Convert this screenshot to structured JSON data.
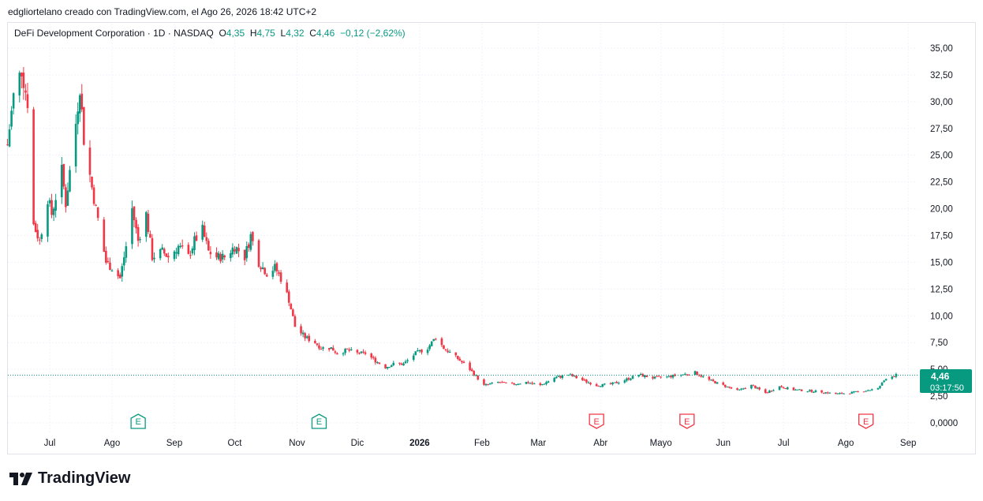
{
  "credit": "edgliortelano creado con TradingView.com, el Ago 26, 2026 18:42 UTC+2",
  "legend": {
    "symbol": "DeFi Development Corporation · 1D · NASDAQ",
    "o_label": "O",
    "o_value": "4,35",
    "h_label": "H",
    "h_value": "4,75",
    "l_label": "L",
    "l_value": "4,32",
    "c_label": "C",
    "c_value": "4,46",
    "change": "−0,12 (−2,62%)"
  },
  "price_tag": {
    "price": "4,46",
    "countdown": "03:17:50"
  },
  "brand": "TradingView",
  "colors": {
    "up": "#089981",
    "down": "#f23645",
    "grid": "#f0f3fa",
    "tag": "#089981"
  },
  "chart_data": {
    "type": "candlestick",
    "y_ticks": [
      "35,00",
      "32,50",
      "30,00",
      "27,50",
      "25,00",
      "22,50",
      "20,00",
      "17,50",
      "15,00",
      "12,50",
      "10,00",
      "7,50",
      "5,00",
      "2,50",
      "0,0000"
    ],
    "ylim": [
      0,
      35
    ],
    "x_ticks": [
      {
        "label": "Jul",
        "date": "2025-07-01"
      },
      {
        "label": "Ago",
        "date": "2025-08-01"
      },
      {
        "label": "Sep",
        "date": "2025-09-01"
      },
      {
        "label": "Oct",
        "date": "2025-10-01"
      },
      {
        "label": "Nov",
        "date": "2025-11-01"
      },
      {
        "label": "Dic",
        "date": "2025-12-01"
      },
      {
        "label": "2026",
        "date": "2026-01-01",
        "bold": true
      },
      {
        "label": "Feb",
        "date": "2026-02-01"
      },
      {
        "label": "Mar",
        "date": "2026-03-01"
      },
      {
        "label": "Abr",
        "date": "2026-04-01"
      },
      {
        "label": "Mayo",
        "date": "2026-05-01"
      },
      {
        "label": "Jun",
        "date": "2026-06-01"
      },
      {
        "label": "Jul",
        "date": "2026-07-01"
      },
      {
        "label": "Ago",
        "date": "2026-08-01"
      },
      {
        "label": "Sep",
        "date": "2026-09-01"
      }
    ],
    "earnings": [
      {
        "date": "2025-08-14",
        "label": "E",
        "type": "up"
      },
      {
        "date": "2025-11-12",
        "label": "E",
        "type": "up"
      },
      {
        "date": "2026-03-30",
        "label": "E",
        "type": "down"
      },
      {
        "date": "2026-05-14",
        "label": "E",
        "type": "down"
      },
      {
        "date": "2026-08-11",
        "label": "E",
        "type": "down"
      }
    ],
    "price_path": [
      [
        "2025-06-10",
        26.0
      ],
      [
        "2025-06-13",
        30.5
      ],
      [
        "2025-06-17",
        33.0
      ],
      [
        "2025-06-20",
        30.0
      ],
      [
        "2025-06-23",
        18.5
      ],
      [
        "2025-06-26",
        17.0
      ],
      [
        "2025-06-30",
        21.0
      ],
      [
        "2025-07-02",
        19.5
      ],
      [
        "2025-07-07",
        23.5
      ],
      [
        "2025-07-09",
        20.5
      ],
      [
        "2025-07-14",
        28.0
      ],
      [
        "2025-07-16",
        31.5
      ],
      [
        "2025-07-18",
        26.5
      ],
      [
        "2025-07-22",
        22.0
      ],
      [
        "2025-07-25",
        19.0
      ],
      [
        "2025-07-29",
        15.0
      ],
      [
        "2025-08-01",
        14.5
      ],
      [
        "2025-08-05",
        13.5
      ],
      [
        "2025-08-08",
        16.5
      ],
      [
        "2025-08-11",
        20.0
      ],
      [
        "2025-08-14",
        17.0
      ],
      [
        "2025-08-18",
        19.5
      ],
      [
        "2025-08-21",
        15.5
      ],
      [
        "2025-08-26",
        16.0
      ],
      [
        "2025-08-29",
        15.5
      ],
      [
        "2025-09-03",
        16.5
      ],
      [
        "2025-09-08",
        15.5
      ],
      [
        "2025-09-11",
        17.0
      ],
      [
        "2025-09-15",
        18.0
      ],
      [
        "2025-09-18",
        16.0
      ],
      [
        "2025-09-22",
        15.5
      ],
      [
        "2025-09-26",
        15.5
      ],
      [
        "2025-10-01",
        16.5
      ],
      [
        "2025-10-06",
        15.5
      ],
      [
        "2025-10-09",
        17.5
      ],
      [
        "2025-10-13",
        15.0
      ],
      [
        "2025-10-17",
        14.0
      ],
      [
        "2025-10-21",
        14.5
      ],
      [
        "2025-10-24",
        13.5
      ],
      [
        "2025-10-28",
        11.5
      ],
      [
        "2025-10-31",
        9.0
      ],
      [
        "2025-11-05",
        8.0
      ],
      [
        "2025-11-10",
        7.5
      ],
      [
        "2025-11-13",
        7.0
      ],
      [
        "2025-11-18",
        7.0
      ],
      [
        "2025-11-21",
        6.5
      ],
      [
        "2025-11-26",
        6.8
      ],
      [
        "2025-12-01",
        6.5
      ],
      [
        "2025-12-05",
        6.5
      ],
      [
        "2025-12-10",
        5.8
      ],
      [
        "2025-12-15",
        5.2
      ],
      [
        "2025-12-19",
        5.5
      ],
      [
        "2025-12-24",
        5.5
      ],
      [
        "2025-12-30",
        6.5
      ],
      [
        "2026-01-05",
        7.0
      ],
      [
        "2026-01-09",
        8.0
      ],
      [
        "2026-01-13",
        7.0
      ],
      [
        "2026-01-20",
        6.0
      ],
      [
        "2026-01-26",
        5.0
      ],
      [
        "2026-02-02",
        3.5
      ],
      [
        "2026-02-09",
        3.8
      ],
      [
        "2026-02-16",
        3.6
      ],
      [
        "2026-02-23",
        3.8
      ],
      [
        "2026-03-02",
        3.5
      ],
      [
        "2026-03-09",
        4.2
      ],
      [
        "2026-03-16",
        4.5
      ],
      [
        "2026-03-23",
        4.0
      ],
      [
        "2026-03-30",
        3.5
      ],
      [
        "2026-04-06",
        3.6
      ],
      [
        "2026-04-13",
        4.0
      ],
      [
        "2026-04-20",
        4.5
      ],
      [
        "2026-04-27",
        4.2
      ],
      [
        "2026-05-04",
        4.3
      ],
      [
        "2026-05-11",
        4.5
      ],
      [
        "2026-05-18",
        4.7
      ],
      [
        "2026-05-25",
        4.0
      ],
      [
        "2026-06-01",
        3.5
      ],
      [
        "2026-06-08",
        3.0
      ],
      [
        "2026-06-15",
        3.5
      ],
      [
        "2026-06-22",
        2.8
      ],
      [
        "2026-06-29",
        3.4
      ],
      [
        "2026-07-06",
        3.1
      ],
      [
        "2026-07-13",
        3.0
      ],
      [
        "2026-07-20",
        2.9
      ],
      [
        "2026-07-27",
        2.7
      ],
      [
        "2026-08-03",
        2.8
      ],
      [
        "2026-08-10",
        3.0
      ],
      [
        "2026-08-17",
        3.2
      ],
      [
        "2026-08-21",
        4.2
      ],
      [
        "2026-08-26",
        4.46
      ]
    ],
    "last_price": 4.46
  }
}
